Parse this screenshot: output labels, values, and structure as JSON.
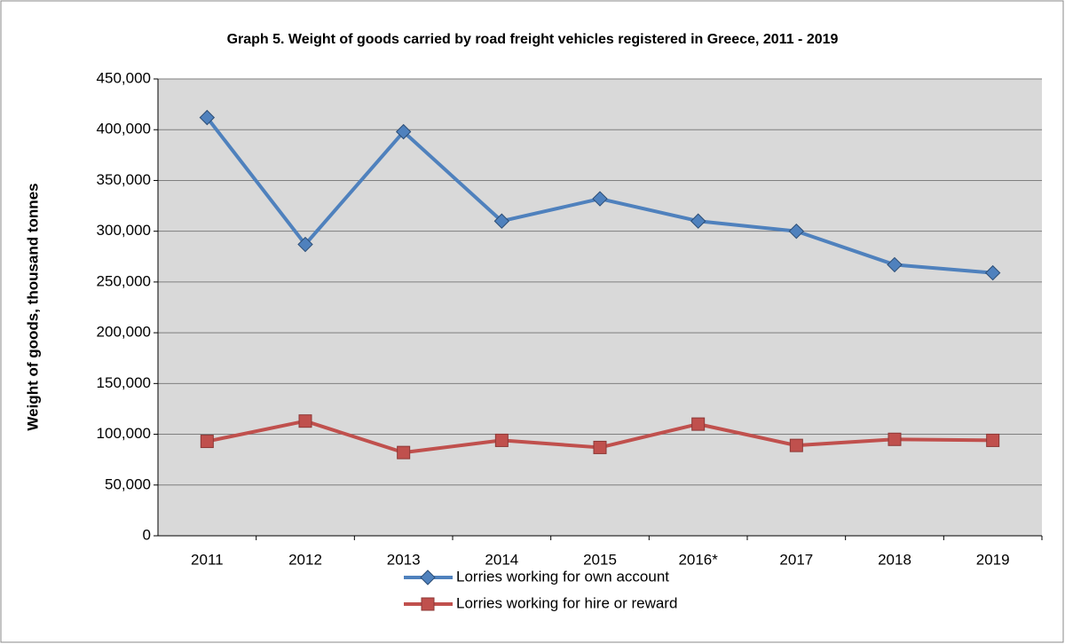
{
  "chart_data": {
    "type": "line",
    "title": "Graph 5. Weight of goods carried by road freight vehicles registered in Greece, 2011 - 2019",
    "y_label": "Weight of goods, thousand tonnes",
    "categories": [
      "2011",
      "2012",
      "2013",
      "2014",
      "2015",
      "2016*",
      "2017",
      "2018",
      "2019"
    ],
    "series": [
      {
        "name": "Lorries working for own account",
        "color": "#4f81bd",
        "marker": "diamond",
        "values": [
          412000,
          287000,
          398000,
          310000,
          332000,
          310000,
          300000,
          267000,
          259000
        ]
      },
      {
        "name": "Lorries working for hire or reward",
        "color": "#c0504d",
        "marker": "square",
        "values": [
          93000,
          113000,
          82000,
          94000,
          87000,
          110000,
          89000,
          95000,
          94000
        ]
      }
    ],
    "ylim": [
      0,
      450000
    ],
    "yticks": [
      0,
      {
        "value": 50000,
        "label": "50,000"
      },
      {
        "value": 100000,
        "label": "100,000"
      },
      {
        "value": 150000,
        "label": "150,000"
      },
      {
        "value": 200000,
        "label": "200,000"
      },
      {
        "value": 250000,
        "label": "250,000"
      },
      {
        "value": 300000,
        "label": "300,000"
      },
      {
        "value": 350000,
        "label": "350,000"
      },
      {
        "value": 400000,
        "label": "400,000"
      },
      {
        "value": 450000,
        "label": "450,000"
      }
    ],
    "grid": true,
    "legend": "bottom"
  }
}
